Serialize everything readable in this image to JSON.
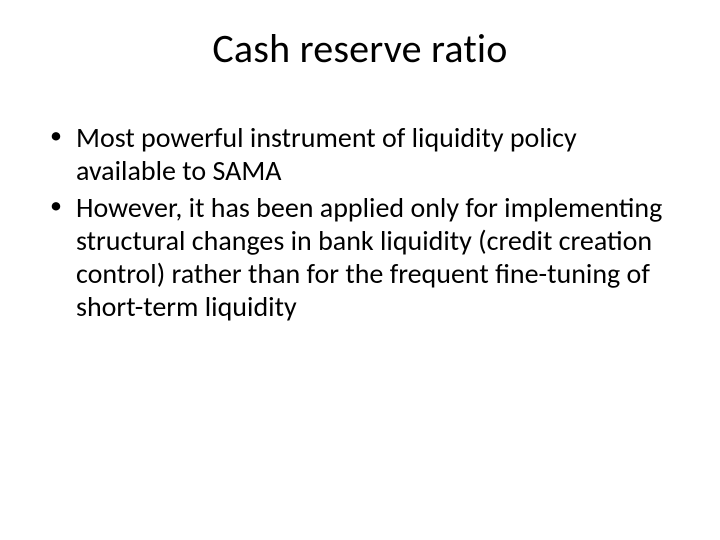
{
  "slide": {
    "background_color": "#ffffff",
    "text_color": "#000000",
    "title": "Cash reserve ratio",
    "title_fontsize": 40,
    "title_align": "center",
    "body_fontsize": 28,
    "bullets": [
      "Most powerful instrument of liquidity policy available to SAMA",
      "However, it has been applied only for implementing structural changes in bank liquidity (credit creation control) rather than for the frequent fine-tuning of short-term liquidity"
    ]
  }
}
